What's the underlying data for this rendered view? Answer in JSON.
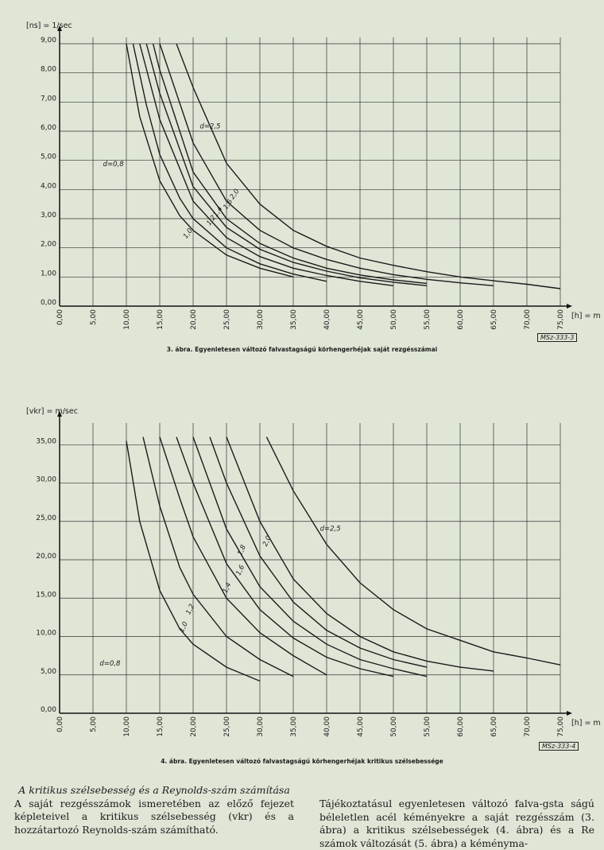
{
  "charts_meta": {
    "fig3": {
      "caption": "3. ábra. Egyenletesen változó falvastagságú körhengerhéjak saját rezgésszámai",
      "stamp": "MSz-333-3"
    },
    "fig4": {
      "caption": "4. ábra. Egyenletesen változó falvastagságú körhengerhéjak kritikus szélsebessége",
      "stamp": "MSz-333-4"
    }
  },
  "text": {
    "left_heading": "A kritikus szélsebesség és a Reynolds-szám számítása",
    "left_body": "A saját rezgésszámok ismeretében az előző fejezet képleteivel a kritikus szélsebesség (vkr) és a hozzátartozó Reynolds-szám számítható.",
    "right_body": "Tájékoztatásul egyenletesen változó falva-gsta ságú béleletlen acél kéményekre a saját rezgésszám (3. ábra) a kritikus szélsebességek (4. ábra) és a Re számok változását (5. ábra) a kéményma-"
  },
  "chart_data": [
    {
      "type": "line",
      "ylabel": "[ns] = 1/sec",
      "xlabel": "[h] = m",
      "xlim": [
        0,
        75
      ],
      "ylim": [
        0,
        9
      ],
      "x_ticks": [
        "0,00",
        "5,00",
        "10,00",
        "15,00",
        "20,00",
        "25,00",
        "30,00",
        "35,00",
        "40,00",
        "45,00",
        "50,00",
        "55,00",
        "60,00",
        "65,00",
        "70,00",
        "75,00"
      ],
      "y_ticks": [
        "0,00",
        "1,00",
        "2,00",
        "3,00",
        "4,00",
        "5,00",
        "6,00",
        "7,00",
        "8,00",
        "9,00"
      ],
      "grid": true,
      "series": [
        {
          "name": "d=0,8",
          "x": [
            10,
            12,
            15,
            18,
            20,
            25,
            30,
            35
          ],
          "y": [
            9.0,
            6.5,
            4.3,
            3.1,
            2.6,
            1.75,
            1.3,
            1.0
          ]
        },
        {
          "name": "1,0",
          "x": [
            11,
            13,
            15,
            18,
            20,
            25,
            30,
            35,
            40
          ],
          "y": [
            9.0,
            6.9,
            5.2,
            3.7,
            3.0,
            2.0,
            1.45,
            1.1,
            0.85
          ]
        },
        {
          "name": "1,2",
          "x": [
            12,
            15,
            20,
            25,
            30,
            35,
            40,
            45,
            50
          ],
          "y": [
            9.0,
            6.4,
            3.6,
            2.35,
            1.7,
            1.3,
            1.05,
            0.85,
            0.7
          ]
        },
        {
          "name": "1,4",
          "x": [
            13,
            15,
            20,
            25,
            30,
            35,
            40,
            45,
            50,
            55
          ],
          "y": [
            9.0,
            7.3,
            4.1,
            2.7,
            1.95,
            1.5,
            1.2,
            0.97,
            0.82,
            0.7
          ]
        },
        {
          "name": "1,6",
          "x": [
            14,
            15,
            20,
            25,
            30,
            35,
            40,
            45,
            50,
            55
          ],
          "y": [
            9.0,
            8.1,
            4.6,
            3.0,
            2.15,
            1.65,
            1.3,
            1.07,
            0.9,
            0.78
          ]
        },
        {
          "name": "2,0",
          "x": [
            15,
            20,
            25,
            30,
            35,
            40,
            45,
            50,
            55,
            60,
            65
          ],
          "y": [
            9.0,
            5.6,
            3.6,
            2.6,
            2.0,
            1.6,
            1.3,
            1.08,
            0.92,
            0.8,
            0.7
          ]
        },
        {
          "name": "d=2,5",
          "x": [
            17.5,
            20,
            25,
            30,
            35,
            40,
            45,
            50,
            55,
            60,
            65,
            70,
            75
          ],
          "y": [
            9.0,
            7.5,
            4.9,
            3.5,
            2.6,
            2.05,
            1.65,
            1.4,
            1.18,
            1.0,
            0.87,
            0.75,
            0.6
          ]
        }
      ]
    },
    {
      "type": "line",
      "ylabel": "[vkr] = m/sec",
      "xlabel": "[h] = m",
      "xlim": [
        0,
        75
      ],
      "ylim": [
        0,
        37
      ],
      "x_ticks": [
        "0,00",
        "5,00",
        "10,00",
        "15,00",
        "20,00",
        "25,00",
        "30,00",
        "35,00",
        "40,00",
        "45,00",
        "50,00",
        "55,00",
        "60,00",
        "65,00",
        "70,00",
        "75,00"
      ],
      "y_ticks": [
        "0,00",
        "5,00",
        "10,00",
        "15,00",
        "20,00",
        "25,00",
        "30,00",
        "35,00"
      ],
      "grid": true,
      "series": [
        {
          "name": "d=0,8",
          "x": [
            10,
            12,
            15,
            18,
            20,
            25,
            30
          ],
          "y": [
            35.5,
            25,
            16,
            11,
            9,
            6,
            4.2
          ]
        },
        {
          "name": "1,0",
          "x": [
            12.5,
            15,
            18,
            20,
            25,
            30,
            35
          ],
          "y": [
            36,
            27,
            19,
            15.5,
            10,
            7,
            4.8
          ]
        },
        {
          "name": "1,2",
          "x": [
            15,
            18,
            20,
            25,
            30,
            35,
            40
          ],
          "y": [
            36,
            28,
            23,
            15,
            10.5,
            7.5,
            5.0
          ]
        },
        {
          "name": "1,4",
          "x": [
            17.5,
            20,
            25,
            30,
            35,
            40,
            45,
            50
          ],
          "y": [
            36,
            30,
            19.5,
            13.5,
            9.8,
            7.3,
            5.8,
            4.8
          ]
        },
        {
          "name": "1,6",
          "x": [
            20,
            25,
            30,
            35,
            40,
            45,
            50,
            55
          ],
          "y": [
            36,
            24,
            16.5,
            12,
            9,
            7,
            5.8,
            4.8
          ]
        },
        {
          "name": "1,8",
          "x": [
            22.5,
            25,
            30,
            35,
            40,
            45,
            50,
            55
          ],
          "y": [
            36,
            30,
            20.5,
            14.5,
            10.8,
            8.5,
            7,
            6
          ]
        },
        {
          "name": "2,0",
          "x": [
            25,
            30,
            35,
            40,
            45,
            50,
            55,
            60,
            65
          ],
          "y": [
            36,
            25,
            17.5,
            13,
            10,
            8,
            6.8,
            6,
            5.5
          ]
        },
        {
          "name": "d=2,5",
          "x": [
            31,
            35,
            40,
            45,
            50,
            55,
            60,
            65,
            70,
            75
          ],
          "y": [
            36,
            29,
            22,
            17,
            13.5,
            11,
            9.5,
            8,
            7.2,
            6.3
          ]
        }
      ]
    }
  ]
}
